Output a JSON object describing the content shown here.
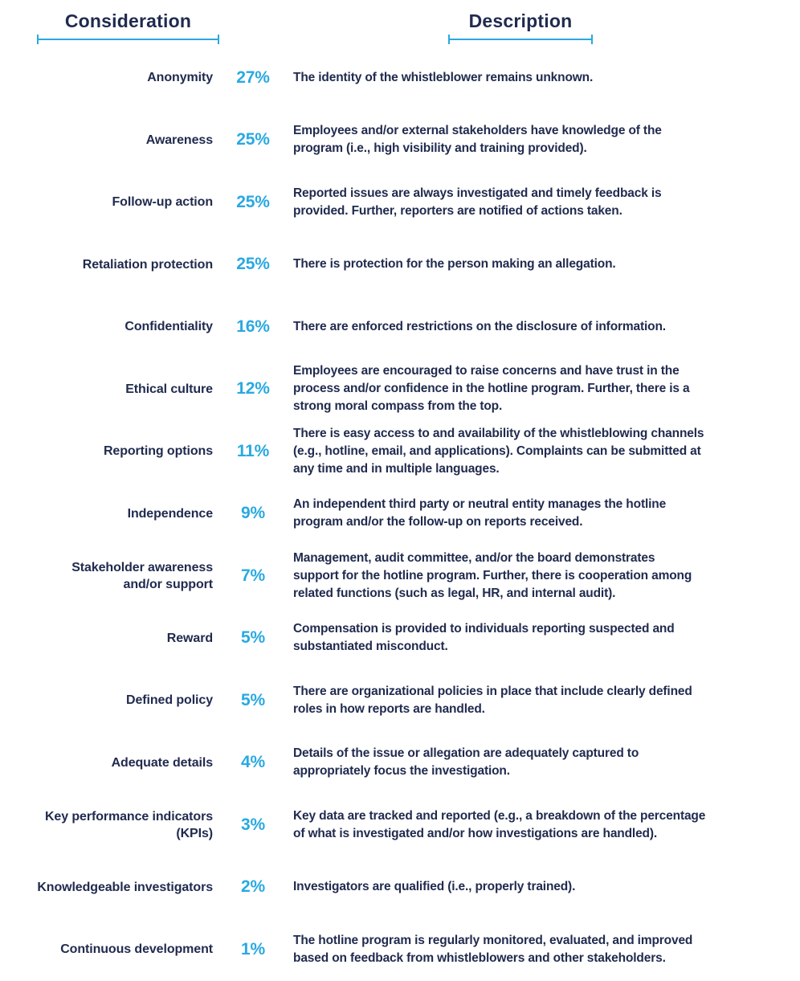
{
  "colors": {
    "navy": "#212b4f",
    "blue": "#29a9e1"
  },
  "header": {
    "consideration": "Consideration",
    "description": "Description"
  },
  "rows": [
    {
      "consideration": "Anonymity",
      "percent": "27%",
      "description": "The identity of the whistleblower remains unknown."
    },
    {
      "consideration": "Awareness",
      "percent": "25%",
      "description": "Employees and/or external stakeholders have knowledge of the\nprogram (i.e., high visibility and training provided)."
    },
    {
      "consideration": "Follow-up action",
      "percent": "25%",
      "description": "Reported issues are always investigated and timely feedback is\nprovided. Further, reporters are notified of actions taken."
    },
    {
      "consideration": "Retaliation protection",
      "percent": "25%",
      "description": "There is protection for the person making an allegation."
    },
    {
      "consideration": "Confidentiality",
      "percent": "16%",
      "description": "There are enforced restrictions on the disclosure of information."
    },
    {
      "consideration": "Ethical culture",
      "percent": "12%",
      "description": "Employees are encouraged to raise concerns and have trust in the\nprocess and/or confidence in the hotline program. Further, there is a\nstrong moral compass from the top."
    },
    {
      "consideration": "Reporting options",
      "percent": "11%",
      "description": "There is easy access to and availability of the whistleblowing channels\n(e.g., hotline, email, and applications). Complaints can be submitted at\nany time and in multiple languages."
    },
    {
      "consideration": "Independence",
      "percent": "9%",
      "description": "An independent third party or neutral entity manages the hotline\nprogram and/or the follow-up on reports received."
    },
    {
      "consideration": "Stakeholder awareness\nand/or support",
      "percent": "7%",
      "description": "Management, audit committee, and/or the board demonstrates\nsupport for the hotline program. Further, there is cooperation among\nrelated functions (such as legal, HR, and internal audit)."
    },
    {
      "consideration": "Reward",
      "percent": "5%",
      "description": "Compensation is provided to individuals reporting suspected and\nsubstantiated misconduct."
    },
    {
      "consideration": "Defined policy",
      "percent": "5%",
      "description": "There are organizational policies in place that include clearly defined\nroles in how reports are handled."
    },
    {
      "consideration": "Adequate details",
      "percent": "4%",
      "description": "Details of the issue or allegation are adequately captured to\nappropriately focus the investigation."
    },
    {
      "consideration": "Key performance indicators\n(KPIs)",
      "percent": "3%",
      "description": "Key data are tracked and reported (e.g., a breakdown of the percentage\nof what is investigated and/or how investigations are handled)."
    },
    {
      "consideration": "Knowledgeable investigators",
      "percent": "2%",
      "description": "Investigators are qualified (i.e., properly trained)."
    },
    {
      "consideration": "Continuous development",
      "percent": "1%",
      "description": "The hotline program is regularly monitored, evaluated, and improved\nbased on feedback from whistleblowers and other stakeholders."
    }
  ],
  "chart_data": {
    "type": "table",
    "title": "",
    "columns": [
      "Consideration",
      "Percentage",
      "Description"
    ],
    "categories": [
      "Anonymity",
      "Awareness",
      "Follow-up action",
      "Retaliation protection",
      "Confidentiality",
      "Ethical culture",
      "Reporting options",
      "Independence",
      "Stakeholder awareness and/or support",
      "Reward",
      "Defined policy",
      "Adequate details",
      "Key performance indicators (KPIs)",
      "Knowledgeable investigators",
      "Continuous development"
    ],
    "values": [
      27,
      25,
      25,
      25,
      16,
      12,
      11,
      9,
      7,
      5,
      5,
      4,
      3,
      2,
      1
    ],
    "unit": "%"
  }
}
